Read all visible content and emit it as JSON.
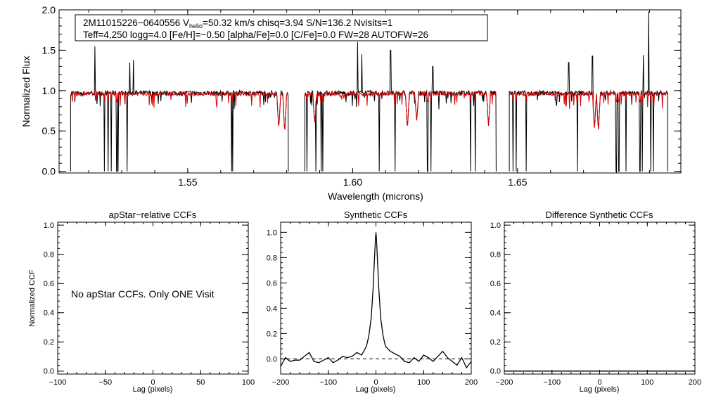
{
  "chart_data": [
    {
      "type": "line",
      "id": "spectrum",
      "ylabel": "Normalized Flux",
      "xlabel": "Wavelength (microns)",
      "xlim": [
        1.511,
        1.6995
      ],
      "ylim": [
        -0.02,
        2.0
      ],
      "xticks": [
        1.55,
        1.6,
        1.65
      ],
      "xtick_labels": [
        "1.55",
        "1.60",
        "1.65"
      ],
      "yticks": [
        0.0,
        0.5,
        1.0,
        1.5,
        2.0
      ],
      "ytick_labels": [
        "0.0",
        "0.5",
        "1.0",
        "1.5",
        "2.0"
      ],
      "header": {
        "line1_pre": "2M11015226−0640556  V",
        "line1_sub": "helio",
        "line1_post": "=50.32 km/s  chisq=3.94  S/N=136.2  Nvisits=1",
        "line2": "Teff=4,250 logg=4.0 [Fe/H]=−0.50 [alpha/Fe]=0.0 [C/Fe]=0.0 FW=28 AUTOFW=26"
      },
      "chips": [
        [
          1.5145,
          1.5805
        ],
        [
          1.5855,
          1.6435
        ],
        [
          1.6475,
          1.6955
        ]
      ],
      "series": [
        {
          "color": "#000000",
          "level": 0.97,
          "noise": 0.03
        },
        {
          "color": "#dd0000",
          "level": 0.96,
          "noise": 0.025
        }
      ],
      "emission_lines": [
        [
          1.5218,
          1.55
        ],
        [
          1.5324,
          1.35
        ],
        [
          1.5336,
          1.38
        ],
        [
          1.6015,
          1.6
        ],
        [
          1.6028,
          1.45
        ],
        [
          1.6115,
          1.5
        ],
        [
          1.6243,
          1.3
        ],
        [
          1.6655,
          1.35
        ],
        [
          1.6727,
          1.43
        ],
        [
          1.6882,
          1.44
        ],
        [
          1.6898,
          1.98
        ]
      ],
      "bad_pixels": [
        1.5247,
        1.5259,
        1.5268,
        1.5285,
        1.5289,
        1.5316,
        1.5633,
        1.5636,
        1.5862,
        1.5889,
        1.5904,
        1.5909,
        1.6081,
        1.6128,
        1.6227,
        1.6238,
        1.6357,
        1.6372,
        1.6486,
        1.6496,
        1.6526,
        1.6681,
        1.6799,
        1.6807,
        1.6828,
        1.6871,
        1.6878,
        1.6904,
        1.6912
      ],
      "absorption_lines": [
        [
          1.5776,
          0.52
        ],
        [
          1.5794,
          0.47
        ],
        [
          1.5885,
          0.58
        ],
        [
          1.6166,
          0.52
        ],
        [
          1.6194,
          0.62
        ],
        [
          1.6412,
          0.55
        ],
        [
          1.6733,
          0.51
        ],
        [
          1.6745,
          0.49
        ]
      ]
    },
    {
      "type": "text",
      "id": "apstar",
      "title": "apStar−relative CCFs",
      "ylabel": "Normalized CCF",
      "xlabel": "Lag (pixels)",
      "xlim": [
        -100,
        100
      ],
      "ylim": [
        -0.02,
        1.02
      ],
      "xticks": [
        -100,
        -50,
        0,
        50,
        100
      ],
      "xtick_labels": [
        "−100",
        "−50",
        "0",
        "50",
        "100"
      ],
      "yticks": [
        0.0,
        0.2,
        0.4,
        0.6,
        0.8,
        1.0
      ],
      "ytick_labels": [
        "0.0",
        "0.2",
        "0.4",
        "0.6",
        "0.8",
        "1.0"
      ],
      "message": "No apStar CCFs.  Only ONE Visit"
    },
    {
      "type": "line",
      "id": "synthetic",
      "title": "Synthetic CCFs",
      "xlabel": "Lag (pixels)",
      "xlim": [
        -200,
        200
      ],
      "ylim": [
        -0.12,
        1.08
      ],
      "xticks": [
        -200,
        -100,
        0,
        100,
        200
      ],
      "xtick_labels": [
        "−200",
        "−100",
        "0",
        "100",
        "200"
      ],
      "yticks": [
        0.0,
        0.2,
        0.4,
        0.6,
        0.8,
        1.0
      ],
      "ytick_labels": [
        "0.0",
        "0.2",
        "0.4",
        "0.6",
        "0.8",
        "1.0"
      ],
      "reference_line": 0.0,
      "x": [
        -200,
        -190,
        -180,
        -170,
        -160,
        -150,
        -140,
        -130,
        -120,
        -110,
        -100,
        -90,
        -80,
        -70,
        -60,
        -50,
        -40,
        -30,
        -20,
        -15,
        -10,
        -6,
        -3,
        -1,
        0,
        1,
        3,
        6,
        10,
        15,
        20,
        30,
        40,
        50,
        60,
        70,
        80,
        90,
        100,
        110,
        120,
        130,
        140,
        150,
        160,
        170,
        180,
        190,
        200
      ],
      "y": [
        -0.06,
        0.01,
        -0.02,
        -0.01,
        -0.01,
        0.02,
        0.05,
        -0.02,
        -0.03,
        -0.01,
        0.01,
        -0.03,
        -0.01,
        0.02,
        0.01,
        0.02,
        0.05,
        0.03,
        0.1,
        0.18,
        0.32,
        0.55,
        0.8,
        0.95,
        1.0,
        0.95,
        0.8,
        0.55,
        0.32,
        0.18,
        0.1,
        0.06,
        0.04,
        0.02,
        -0.02,
        -0.03,
        0.01,
        -0.02,
        0.03,
        0.01,
        -0.02,
        0.02,
        0.06,
        0.01,
        -0.02,
        -0.05,
        0.01,
        -0.07,
        -0.02
      ]
    },
    {
      "type": "line",
      "id": "difference",
      "title": "Difference Synthetic CCFs",
      "xlabel": "Lag (pixels)",
      "xlim": [
        -200,
        200
      ],
      "ylim": [
        -0.02,
        1.02
      ],
      "xticks": [
        -200,
        -100,
        0,
        100,
        200
      ],
      "xtick_labels": [
        "−200",
        "−100",
        "0",
        "100",
        "200"
      ],
      "yticks": [
        0.0,
        0.2,
        0.4,
        0.6,
        0.8,
        1.0
      ],
      "ytick_labels": [
        "0.0",
        "0.2",
        "0.4",
        "0.6",
        "0.8",
        "1.0"
      ],
      "x": [
        -200,
        200
      ],
      "y": [
        0.0,
        0.0
      ]
    }
  ]
}
